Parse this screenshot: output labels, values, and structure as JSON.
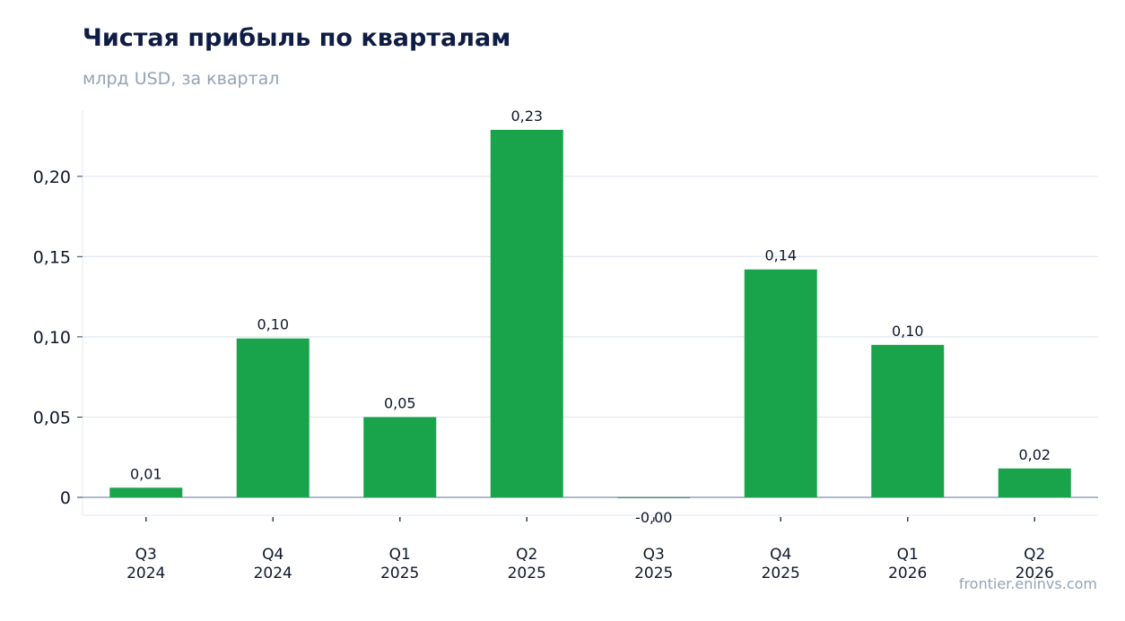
{
  "header": {
    "title": "Чистая прибыль по кварталам",
    "subtitle": "млрд USD, за квартал"
  },
  "footer": {
    "source": "frontier.eninvs.com"
  },
  "chart_data": {
    "type": "bar",
    "categories": [
      [
        "Q3",
        "2024"
      ],
      [
        "Q4",
        "2024"
      ],
      [
        "Q1",
        "2025"
      ],
      [
        "Q2",
        "2025"
      ],
      [
        "Q3",
        "2025"
      ],
      [
        "Q4",
        "2025"
      ],
      [
        "Q1",
        "2026"
      ],
      [
        "Q2",
        "2026"
      ]
    ],
    "values": [
      0.006,
      0.099,
      0.05,
      0.229,
      -0.0005,
      0.142,
      0.095,
      0.018
    ],
    "data_labels": [
      "0,01",
      "0,10",
      "0,05",
      "0,23",
      "-0,00",
      "0,14",
      "0,10",
      "0,02"
    ],
    "yticks": [
      0,
      0.05,
      0.1,
      0.15,
      0.2
    ],
    "ytick_labels": [
      "0",
      "0,05",
      "0,10",
      "0,15",
      "0,20"
    ],
    "ylim": [
      -0.012,
      0.24
    ],
    "grid": true,
    "legend": "none",
    "colors": {
      "bar": "#19a34a",
      "grid": "#e2e8f0",
      "zero_line": "#94a3b8",
      "axis": "#e2e8f0",
      "text": "#0f172a"
    }
  }
}
